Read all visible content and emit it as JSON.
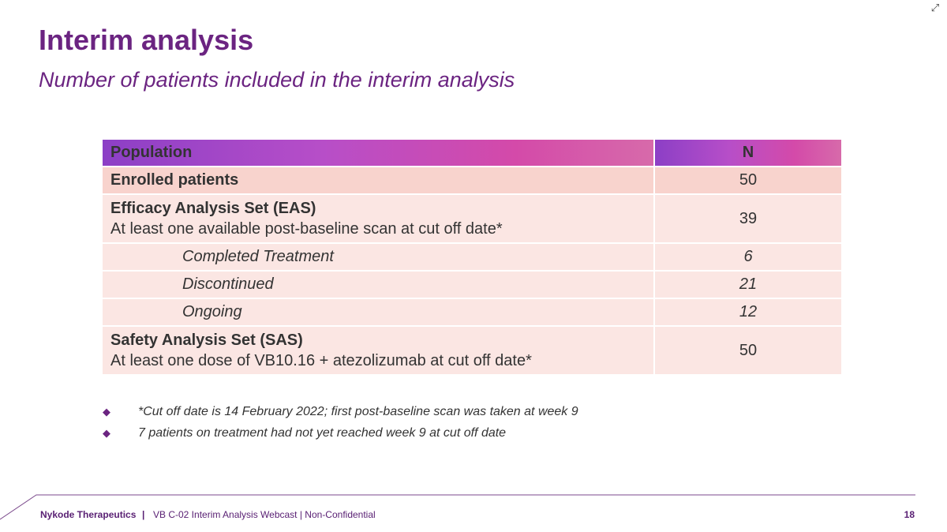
{
  "slide": {
    "title": "Interim analysis",
    "subtitle": "Number of patients included in the interim analysis"
  },
  "table": {
    "headers": [
      "Population",
      "N"
    ],
    "rows": [
      {
        "label": "Enrolled patients",
        "n": "50"
      },
      {
        "label": "Efficacy Analysis Set (EAS)",
        "desc": "At least one available post-baseline scan at cut off date*",
        "n": "39"
      },
      {
        "label": "Completed Treatment",
        "n": "6"
      },
      {
        "label": "Discontinued",
        "n": "21"
      },
      {
        "label": "Ongoing",
        "n": "12"
      },
      {
        "label": "Safety Analysis Set (SAS)",
        "desc": "At least one dose of VB10.16 + atezolizumab at cut off date*",
        "n": "50"
      }
    ]
  },
  "notes": [
    "*Cut off date is 14 February 2022; first post-baseline scan was taken at week 9",
    "7 patients on treatment had not yet reached week 9 at cut off date"
  ],
  "footer": {
    "company": "Nykode Therapeutics",
    "separator": "|",
    "info": "VB C-02 Interim Analysis Webcast | Non-Confidential",
    "page": "18"
  },
  "icons": {
    "expand": "expand-icon",
    "bullet": "diamond-bullet-icon"
  },
  "colors": {
    "title": "#6b2481",
    "header_gradient_start": "#8c3fc6",
    "header_gradient_end": "#d76aaa",
    "row_main": "#f8d3cd",
    "row_light": "#fbe6e3"
  }
}
